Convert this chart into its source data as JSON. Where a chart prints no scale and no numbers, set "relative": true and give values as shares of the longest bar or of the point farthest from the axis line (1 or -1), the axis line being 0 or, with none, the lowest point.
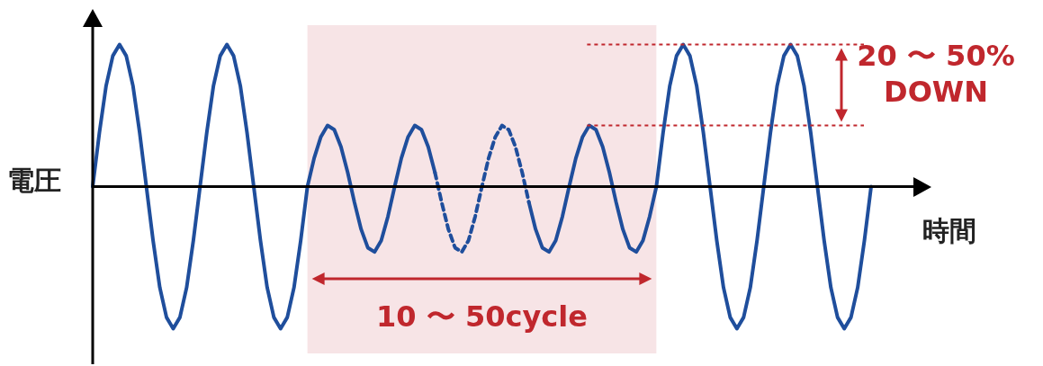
{
  "chart_data": {
    "type": "line",
    "relative": true,
    "xlabel": "時間",
    "ylabel": "電圧",
    "legend": false,
    "categories": [
      null,
      null,
      null,
      null,
      null,
      null,
      null,
      null,
      null,
      null,
      null,
      null,
      null,
      null,
      null,
      null,
      null,
      null,
      null,
      null,
      null,
      null,
      null,
      null,
      null,
      null,
      null,
      null,
      null,
      null,
      null,
      null,
      null,
      null,
      null,
      null,
      null,
      null,
      null,
      null,
      null,
      null,
      null,
      null,
      null,
      null,
      null,
      null,
      null,
      null,
      null,
      null,
      null,
      null,
      null,
      null,
      null,
      null,
      null,
      null,
      null,
      null,
      null,
      null,
      null,
      null,
      null,
      null,
      null,
      null,
      null,
      null,
      null,
      null,
      null,
      null,
      null,
      null,
      null,
      null,
      null,
      null,
      null,
      null,
      null,
      null,
      null,
      null,
      null,
      null,
      null,
      null,
      null,
      null,
      null,
      null,
      null,
      null,
      null,
      null,
      null,
      null,
      null,
      null,
      null,
      null,
      null,
      null,
      null,
      null,
      null,
      null,
      null,
      null,
      null,
      null,
      null
    ],
    "series": [
      {
        "color": "#1f4e9c",
        "line_style": "solid",
        "values": [
          0,
          0.38,
          0.71,
          0.92,
          1,
          0.92,
          0.71,
          0.38,
          0,
          -0.38,
          -0.71,
          -0.92,
          -1,
          -0.92,
          -0.71,
          -0.38,
          0,
          0.38,
          0.71,
          0.92,
          1,
          0.92,
          0.71,
          0.38,
          0,
          -0.38,
          -0.71,
          -0.92,
          -1,
          -0.92,
          -0.71,
          -0.38,
          0,
          0.2,
          0.35,
          0.43,
          0.4,
          0.28,
          0.1,
          -0.11,
          -0.3,
          -0.43,
          -0.46,
          -0.38,
          -0.21,
          0,
          0.2,
          0.35,
          0.43,
          0.4,
          0.28,
          0.1,
          null,
          null,
          null,
          null,
          null,
          null,
          null,
          null,
          null,
          null,
          null,
          null,
          null,
          -0.11,
          -0.3,
          -0.43,
          -0.46,
          -0.38,
          -0.21,
          0,
          0.2,
          0.35,
          0.43,
          0.4,
          0.28,
          0.1,
          -0.11,
          -0.3,
          -0.43,
          -0.46,
          -0.38,
          -0.21,
          0,
          0.38,
          0.71,
          0.92,
          1,
          0.92,
          0.71,
          0.38,
          0,
          -0.38,
          -0.71,
          -0.92,
          -1,
          -0.92,
          -0.71,
          -0.38,
          0,
          0.38,
          0.71,
          0.92,
          1,
          0.92,
          0.71,
          0.38,
          0,
          -0.38,
          -0.71,
          -0.92,
          -1,
          -0.92,
          -0.71,
          -0.38,
          0
        ]
      },
      {
        "color": "#1f4e9c",
        "line_style": "dashed",
        "values": [
          null,
          null,
          null,
          null,
          null,
          null,
          null,
          null,
          null,
          null,
          null,
          null,
          null,
          null,
          null,
          null,
          null,
          null,
          null,
          null,
          null,
          null,
          null,
          null,
          null,
          null,
          null,
          null,
          null,
          null,
          null,
          null,
          null,
          null,
          null,
          null,
          null,
          null,
          null,
          null,
          null,
          null,
          null,
          null,
          null,
          null,
          null,
          null,
          null,
          null,
          null,
          0.1,
          -0.11,
          -0.3,
          -0.43,
          -0.46,
          -0.38,
          -0.21,
          0,
          0.2,
          0.35,
          0.43,
          0.4,
          0.28,
          0.1,
          -0.11,
          null,
          null,
          null,
          null,
          null,
          null,
          null,
          null,
          null,
          null,
          null,
          null,
          null,
          null,
          null,
          null,
          null,
          null,
          null,
          null,
          null,
          null,
          null,
          null,
          null,
          null,
          null,
          null,
          null,
          null,
          null,
          null,
          null,
          null,
          null,
          null,
          null,
          null,
          null,
          null,
          null,
          null,
          null,
          null,
          null,
          null,
          null,
          null,
          null,
          null,
          null
        ]
      }
    ],
    "ref_lines": [
      {
        "axis": "y",
        "value": 1,
        "color": "#c0272d",
        "line_style": "dotted"
      },
      {
        "axis": "y",
        "value": 0.43,
        "color": "#c0272d",
        "line_style": "dotted"
      }
    ],
    "annotations": [
      "20 〜 50% DOWN",
      "10 〜 50cycle"
    ]
  }
}
